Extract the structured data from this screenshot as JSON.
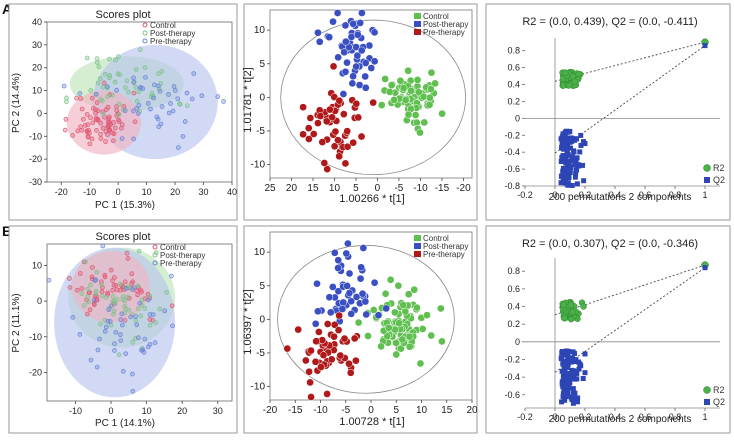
{
  "rows": [
    {
      "panel_label": "A",
      "scores_plot": {
        "type": "scatter",
        "title": "Scores plot",
        "xlabel": "PC 1 (15.3%)",
        "ylabel": "PC 2 (14.4%)",
        "xlim": [
          -25,
          40
        ],
        "ylim": [
          -30,
          40
        ],
        "xticks": [
          -20,
          -10,
          0,
          10,
          20,
          30,
          40
        ],
        "yticks": [
          -30,
          -20,
          -10,
          0,
          10,
          20,
          30,
          40
        ],
        "legend": [
          "Control",
          "Post-therapy",
          "Pre-therapy"
        ],
        "legend_position": "top-right",
        "colors": {
          "Control": "#e05a73",
          "Post-therapy": "#7cc38a",
          "Pre-therapy": "#6b86d6"
        },
        "ellipses": [
          {
            "group": "Post-therapy",
            "cx": 3,
            "cy": 13,
            "rx": 20,
            "ry": 12,
            "fill": "#bfe3b8"
          },
          {
            "group": "Pre-therapy",
            "cx": 13,
            "cy": 5,
            "rx": 22,
            "ry": 25,
            "fill": "#b9c4ee"
          },
          {
            "group": "Control",
            "cx": -5,
            "cy": -4,
            "rx": 13,
            "ry": 14,
            "fill": "#efb3c1"
          }
        ],
        "clusters": [
          {
            "group": "Control",
            "n": 75,
            "cx": -6,
            "cy": -3,
            "sx": 5,
            "sy": 6
          },
          {
            "group": "Post-therapy",
            "n": 50,
            "cx": 2,
            "cy": 12,
            "sx": 9,
            "sy": 8
          },
          {
            "group": "Pre-therapy",
            "n": 45,
            "cx": 12,
            "cy": 4,
            "sx": 11,
            "sy": 9
          }
        ]
      },
      "opls_plot": {
        "type": "scatter",
        "xlabel": "1.00266 * t[1]",
        "ylabel": "1.01781 * t[2]",
        "x_reversed": true,
        "xlim": [
          25,
          -22
        ],
        "ylim": [
          -12,
          13
        ],
        "xticks": [
          25,
          20,
          15,
          10,
          5,
          0,
          -5,
          -10,
          -15,
          -20
        ],
        "yticks": [
          10,
          5,
          0,
          -5,
          -10
        ],
        "legend": [
          "Control",
          "Post-therapy",
          "Pre-therapy"
        ],
        "legend_position": "top-right",
        "colors": {
          "Control": "#5fbf4f",
          "Post-therapy": "#3a4fc2",
          "Pre-therapy": "#b01919"
        },
        "ellipse": {
          "cx": 1,
          "cy": 0,
          "rx": 21.5,
          "ry": 11.5
        },
        "clusters": [
          {
            "group": "Control",
            "n": 80,
            "cx": -8,
            "cy": 0,
            "sx": 3,
            "sy": 2
          },
          {
            "group": "Post-therapy",
            "n": 55,
            "cx": 6,
            "cy": 7,
            "sx": 3,
            "sy": 3
          },
          {
            "group": "Pre-therapy",
            "n": 55,
            "cx": 10,
            "cy": -4,
            "sx": 4,
            "sy": 3
          }
        ]
      },
      "perm_plot": {
        "type": "scatter",
        "title": "R2 = (0.0, 0.439), Q2 = (0.0, -0.411)",
        "xlabel": "200 permutations 2 components",
        "xlim": [
          -0.2,
          1.1
        ],
        "ylim": [
          -0.8,
          0.95
        ],
        "xticks": [
          -0.2,
          0,
          0.2,
          0.4,
          0.6,
          0.8,
          1
        ],
        "yticks": [
          0.8,
          0.6,
          0.4,
          0.2,
          0,
          -0.2,
          -0.4,
          -0.6,
          -0.8
        ],
        "legend": [
          "R2",
          "Q2"
        ],
        "legend_position": "bottom-right",
        "colors": {
          "R2": "#48b248",
          "Q2": "#2d45b5"
        },
        "r2_line": {
          "intercept": 0.439,
          "end": [
            1.0,
            0.9
          ]
        },
        "q2_line": {
          "intercept": -0.411,
          "end": [
            1.0,
            0.86
          ]
        },
        "r2_points": {
          "n": 70,
          "ymin": 0.38,
          "ymax": 0.55
        },
        "q2_points": {
          "n": 110,
          "ymin": -0.8,
          "ymax": -0.15
        }
      }
    },
    {
      "panel_label": "B",
      "scores_plot": {
        "type": "scatter",
        "title": "Scores plot",
        "xlabel": "PC 1 (14.1%)",
        "ylabel": "PC 2 (11.1%)",
        "xlim": [
          -18,
          34
        ],
        "ylim": [
          -28,
          16
        ],
        "xticks": [
          -10,
          0,
          10,
          20,
          30
        ],
        "yticks": [
          -20,
          -10,
          0,
          10
        ],
        "legend": [
          "Control",
          "Post-therapy",
          "Pre-therapy"
        ],
        "legend_position": "top-right",
        "colors": {
          "Control": "#e05a73",
          "Post-therapy": "#7cc38a",
          "Pre-therapy": "#6b86d6"
        },
        "ellipses": [
          {
            "group": "Post-therapy",
            "cx": 3,
            "cy": 1,
            "rx": 15,
            "ry": 14,
            "fill": "#bfe3b8"
          },
          {
            "group": "Pre-therapy",
            "cx": 1,
            "cy": -6,
            "rx": 17,
            "ry": 21,
            "fill": "#b9c4ee"
          },
          {
            "group": "Control",
            "cx": 0,
            "cy": 4,
            "rx": 11,
            "ry": 10,
            "fill": "#efb3c1"
          }
        ],
        "clusters": [
          {
            "group": "Control",
            "n": 60,
            "cx": 0,
            "cy": 4,
            "sx": 6,
            "sy": 4
          },
          {
            "group": "Post-therapy",
            "n": 55,
            "cx": 2,
            "cy": 0,
            "sx": 7,
            "sy": 6
          },
          {
            "group": "Pre-therapy",
            "n": 50,
            "cx": 2,
            "cy": -7,
            "sx": 8,
            "sy": 8
          }
        ]
      },
      "opls_plot": {
        "type": "scatter",
        "xlabel": "1.00728 * t[1]",
        "ylabel": "1.06397 * t[2]",
        "x_reversed": false,
        "xlim": [
          -20,
          20
        ],
        "ylim": [
          -12,
          13
        ],
        "xticks": [
          -20,
          -15,
          -10,
          -5,
          0,
          5,
          10,
          15,
          20
        ],
        "yticks": [
          10,
          5,
          0,
          -5,
          -10
        ],
        "legend": [
          "Control",
          "Post-therapy",
          "Pre-therapy"
        ],
        "legend_position": "top-right",
        "colors": {
          "Control": "#5fbf4f",
          "Post-therapy": "#3a4fc2",
          "Pre-therapy": "#b01919"
        },
        "ellipse": {
          "cx": -1,
          "cy": 0,
          "rx": 17.5,
          "ry": 11
        },
        "clusters": [
          {
            "group": "Control",
            "n": 90,
            "cx": 6,
            "cy": -1,
            "sx": 3,
            "sy": 2.5
          },
          {
            "group": "Post-therapy",
            "n": 50,
            "cx": -4,
            "cy": 4,
            "sx": 3.5,
            "sy": 3.5
          },
          {
            "group": "Pre-therapy",
            "n": 55,
            "cx": -8,
            "cy": -5,
            "sx": 3,
            "sy": 3
          }
        ]
      },
      "perm_plot": {
        "type": "scatter",
        "title": "R2 = (0.0, 0.307), Q2 = (0.0, -0.346)",
        "xlabel": "200 permutations 2 components",
        "xlim": [
          -0.2,
          1.1
        ],
        "ylim": [
          -0.75,
          0.95
        ],
        "xticks": [
          -0.2,
          0,
          0.2,
          0.4,
          0.6,
          0.8,
          1
        ],
        "yticks": [
          0.8,
          0.6,
          0.4,
          0.2,
          0,
          -0.2,
          -0.4,
          -0.6
        ],
        "legend": [
          "R2",
          "Q2"
        ],
        "legend_position": "bottom-right",
        "colors": {
          "R2": "#48b248",
          "Q2": "#2d45b5"
        },
        "r2_line": {
          "intercept": 0.307,
          "end": [
            1.0,
            0.87
          ]
        },
        "q2_line": {
          "intercept": -0.346,
          "end": [
            1.0,
            0.84
          ]
        },
        "r2_points": {
          "n": 70,
          "ymin": 0.25,
          "ymax": 0.45
        },
        "q2_points": {
          "n": 110,
          "ymin": -0.7,
          "ymax": -0.1
        }
      }
    }
  ]
}
